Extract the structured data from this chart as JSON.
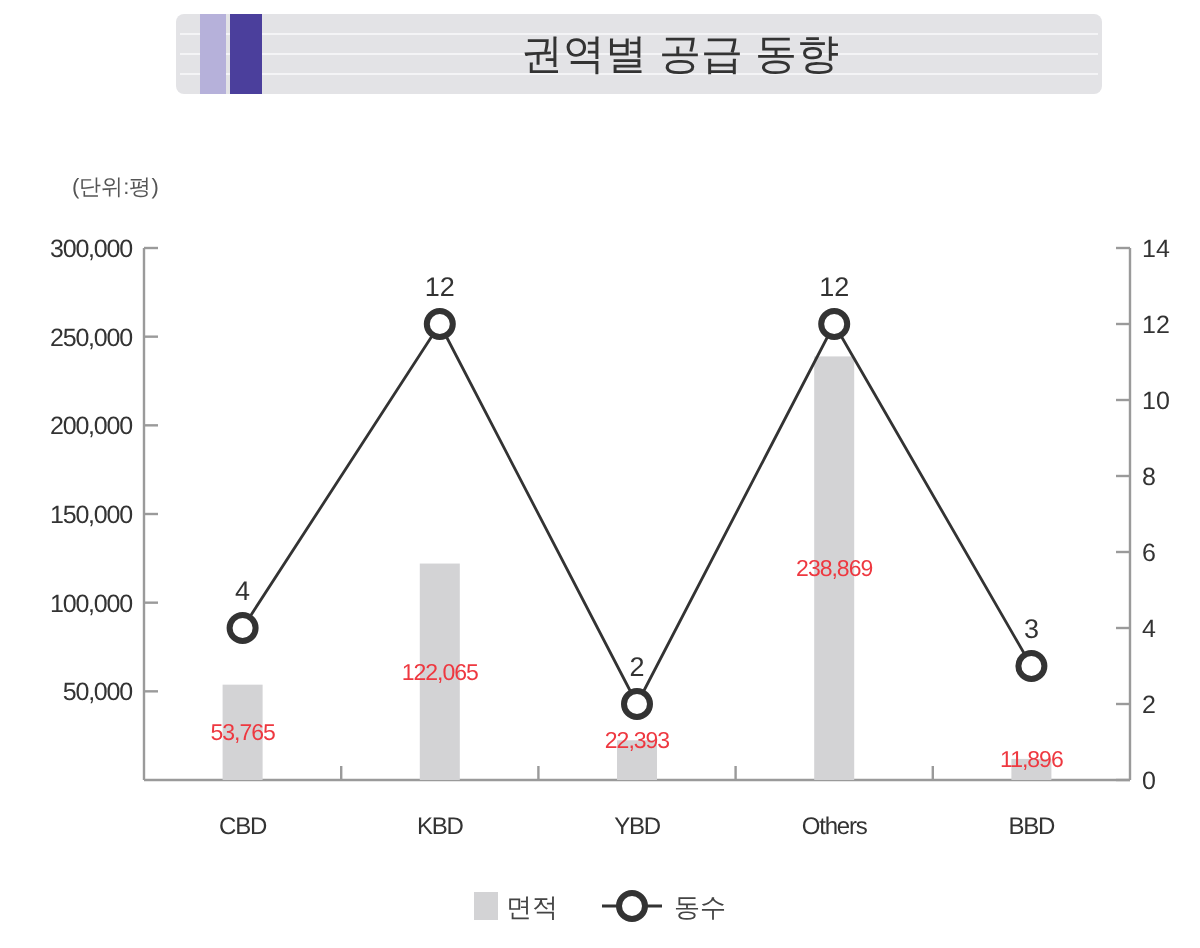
{
  "chart_data": {
    "type": "bar",
    "title": "권역별 공급 동향",
    "annotations": [
      "(단위:평)"
    ],
    "categories": [
      "CBD",
      "KBD",
      "YBD",
      "Others",
      "BBD"
    ],
    "series": [
      {
        "name": "면적",
        "color": "#d3d3d5",
        "values": [
          53765,
          122065,
          22393,
          238869,
          11896
        ],
        "value_labels": [
          "53,765",
          "122,065",
          "22,393",
          "238,869",
          "11,896"
        ]
      },
      {
        "name": "동수",
        "type": "line",
        "axis": "y2",
        "color": "#333333",
        "values": [
          4,
          12,
          2,
          12,
          3
        ],
        "value_labels": [
          "4",
          "12",
          "2",
          "12",
          "3"
        ]
      }
    ],
    "ylim": [
      0,
      300000
    ],
    "yticks": [
      {
        "value": 50000,
        "label": "50,000"
      },
      {
        "value": 100000,
        "label": "100,000"
      },
      {
        "value": 150000,
        "label": "150,000"
      },
      {
        "value": 200000,
        "label": "200,000"
      },
      {
        "value": 250000,
        "label": "250,000"
      },
      {
        "value": 300000,
        "label": "300,000"
      }
    ],
    "y2lim": [
      0,
      14
    ],
    "y2ticks": [
      0,
      2,
      4,
      6,
      8,
      10,
      12,
      14
    ],
    "marker": "circle",
    "legend": "bottom"
  }
}
